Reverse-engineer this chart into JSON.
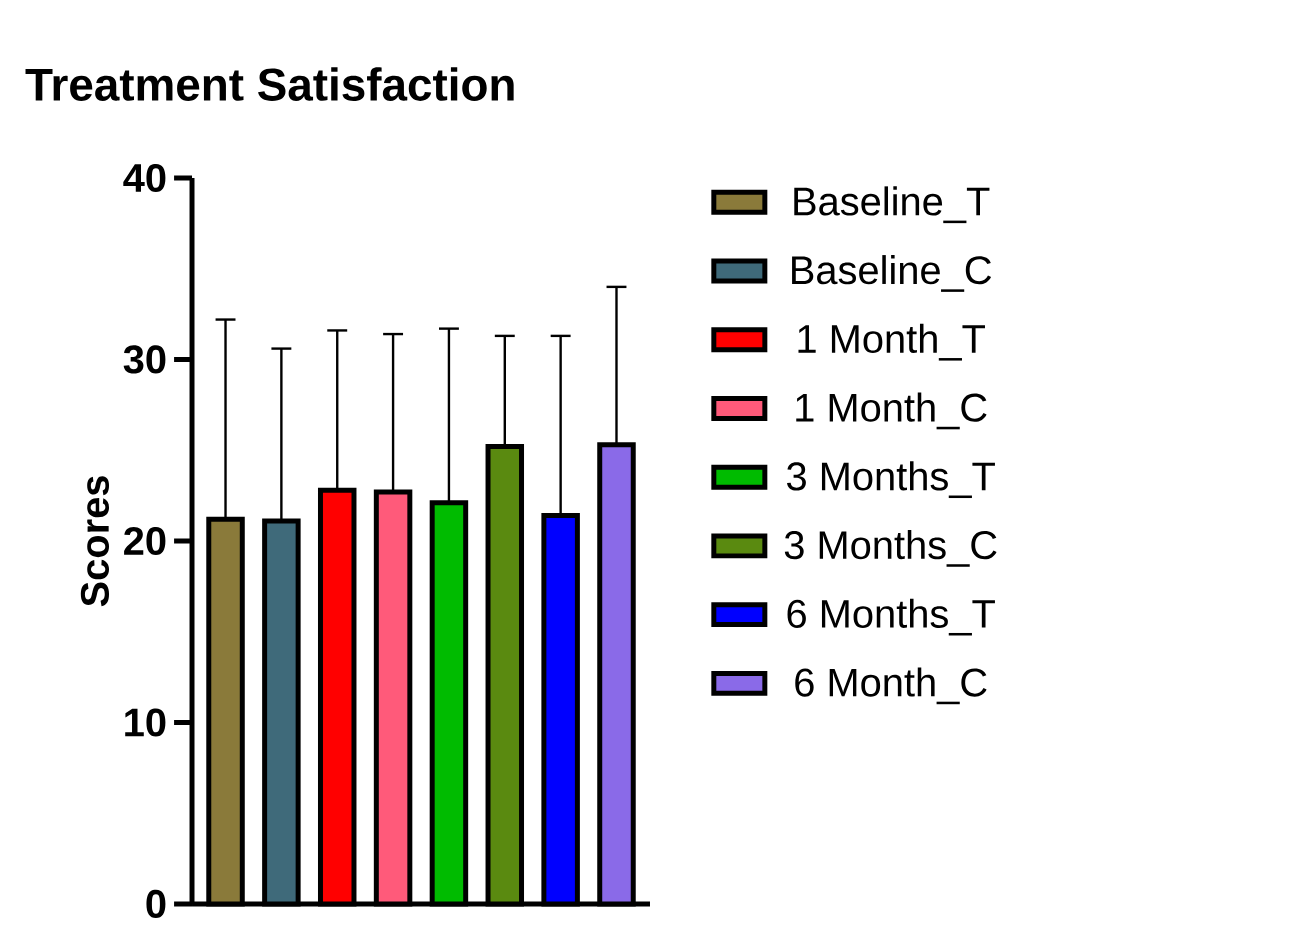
{
  "chart_data": {
    "type": "bar",
    "title": "Treatment Satisfaction",
    "ylabel": "Scores",
    "categories": [
      null,
      null,
      null,
      null,
      null,
      null,
      null,
      null
    ],
    "series": [
      {
        "name": "Baseline_T",
        "color": "#8a7a3a",
        "values": [
          21.2,
          null,
          null,
          null,
          null,
          null,
          null,
          null
        ],
        "errors": [
          [
            21.2,
            32.2
          ],
          null,
          null,
          null,
          null,
          null,
          null,
          null
        ]
      },
      {
        "name": "Baseline_C",
        "color": "#3f6a7a",
        "values": [
          null,
          21.1,
          null,
          null,
          null,
          null,
          null,
          null
        ],
        "errors": [
          null,
          [
            21.1,
            30.6
          ],
          null,
          null,
          null,
          null,
          null,
          null
        ]
      },
      {
        "name": "1 Month_T",
        "color": "#ff0000",
        "values": [
          null,
          null,
          22.8,
          null,
          null,
          null,
          null,
          null
        ],
        "errors": [
          null,
          null,
          [
            22.8,
            31.6
          ],
          null,
          null,
          null,
          null,
          null
        ]
      },
      {
        "name": "1 Month_C",
        "color": "#ff5a7a",
        "values": [
          null,
          null,
          null,
          22.7,
          null,
          null,
          null,
          null
        ],
        "errors": [
          null,
          null,
          null,
          [
            22.7,
            31.4
          ],
          null,
          null,
          null,
          null
        ]
      },
      {
        "name": "3 Months_T",
        "color": "#00bb00",
        "values": [
          null,
          null,
          null,
          null,
          22.1,
          null,
          null,
          null
        ],
        "errors": [
          null,
          null,
          null,
          null,
          [
            22.1,
            31.7
          ],
          null,
          null,
          null
        ]
      },
      {
        "name": "3 Months_C",
        "color": "#5a8a10",
        "values": [
          null,
          null,
          null,
          null,
          null,
          25.2,
          null,
          null
        ],
        "errors": [
          null,
          null,
          null,
          null,
          null,
          [
            25.2,
            31.3
          ],
          null,
          null
        ]
      },
      {
        "name": "6 Months_T",
        "color": "#0000ff",
        "values": [
          null,
          null,
          null,
          null,
          null,
          null,
          21.4,
          null
        ],
        "errors": [
          null,
          null,
          null,
          null,
          null,
          null,
          [
            21.4,
            31.3
          ],
          null
        ]
      },
      {
        "name": "6 Month_C",
        "color": "#8a6ae8",
        "values": [
          null,
          null,
          null,
          null,
          null,
          null,
          null,
          25.3
        ],
        "errors": [
          null,
          null,
          null,
          null,
          null,
          null,
          null,
          [
            25.3,
            34.0
          ]
        ]
      }
    ],
    "ylim": [
      0,
      40
    ],
    "yticks": [
      0,
      10,
      20,
      30,
      40
    ],
    "legend": "right",
    "grid": false
  }
}
